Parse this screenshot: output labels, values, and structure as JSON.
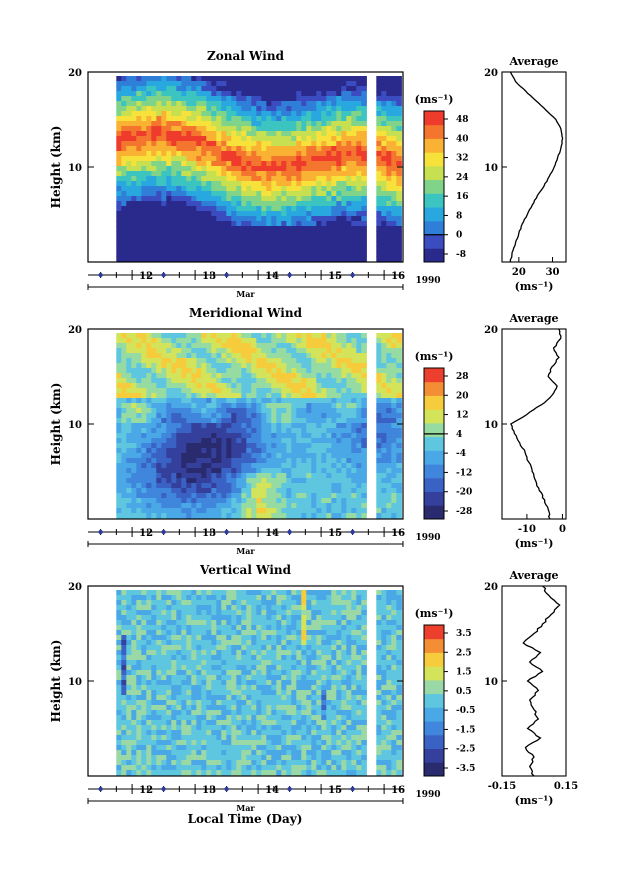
{
  "figure": {
    "bottom_label": "Local Time (Day)"
  },
  "colors": {
    "zonal": [
      "#2a2a8c",
      "#3b4cc0",
      "#2f7fd8",
      "#29a8e0",
      "#3cc4c0",
      "#7fd48a",
      "#c6e052",
      "#f7e13b",
      "#f9b233",
      "#f4762e",
      "#ef3b2c"
    ],
    "meridional": [
      "#2a2a6e",
      "#34409c",
      "#3a62c4",
      "#3f86dc",
      "#4aa8e6",
      "#5fc6e0",
      "#96dca2",
      "#d4e45a",
      "#f6cc3c",
      "#f38e35",
      "#ec3f2d"
    ],
    "vertical": [
      "#2a2a6e",
      "#34409c",
      "#3a62c4",
      "#3f86dc",
      "#4aa8e6",
      "#5fc6e0",
      "#9ad8a6",
      "#d4e45a",
      "#f6cc3c",
      "#f38e35",
      "#ec3f2d"
    ]
  },
  "chart_data": [
    {
      "type": "heatmap",
      "id": "zonal",
      "title": "Zonal Wind",
      "ylabel": "Height (km)",
      "ylim": [
        0,
        20
      ],
      "yticks": [
        "10",
        "20"
      ],
      "xlim": [
        11.3,
        16.3
      ],
      "xticks": [
        "12",
        "13",
        "14",
        "15",
        "16"
      ],
      "xlabel": "Mar",
      "year": "1990",
      "data_start": 11.75,
      "gap": [
        15.75,
        15.87
      ],
      "colorbar": {
        "unit": "(ms⁻¹)",
        "ticks": [
          "48",
          "40",
          "32",
          "24",
          "16",
          "8",
          "0",
          "-8"
        ],
        "zero_line": "0"
      },
      "profile": {
        "title": "Average",
        "xlim": [
          15,
          34
        ],
        "xticks": [
          "20",
          "30"
        ],
        "xlabel": "(ms⁻¹)",
        "height": [
          0,
          1,
          2,
          3,
          4,
          5,
          6,
          7,
          8,
          9,
          10,
          11,
          12,
          13,
          14,
          15,
          16,
          17,
          18,
          19,
          20
        ],
        "values": [
          17.5,
          18,
          19,
          20,
          21,
          22.5,
          24,
          25.5,
          27.5,
          29,
          30.5,
          31.5,
          32.5,
          33,
          32.5,
          31,
          28,
          25,
          22,
          19,
          17.5
        ]
      }
    },
    {
      "type": "heatmap",
      "id": "meridional",
      "title": "Meridional Wind",
      "ylabel": "Height (km)",
      "ylim": [
        0,
        20
      ],
      "yticks": [
        "10",
        "20"
      ],
      "xlim": [
        11.3,
        16.3
      ],
      "xticks": [
        "12",
        "13",
        "14",
        "15",
        "16"
      ],
      "xlabel": "Mar",
      "year": "1990",
      "data_start": 11.75,
      "gap": [
        15.75,
        15.87
      ],
      "colorbar": {
        "unit": "(ms⁻¹)",
        "ticks": [
          "28",
          "20",
          "12",
          "4",
          "-4",
          "-12",
          "-20",
          "-28"
        ],
        "zero_line": "4"
      },
      "profile": {
        "title": "Average",
        "xlim": [
          -17,
          1
        ],
        "xticks": [
          "-10",
          "0"
        ],
        "xlabel": "(ms⁻¹)",
        "height": [
          0,
          1,
          2,
          3,
          4,
          5,
          6,
          7,
          8,
          9,
          10,
          11,
          12,
          13,
          14,
          15,
          16,
          17,
          18,
          19,
          20
        ],
        "values": [
          -3.5,
          -4,
          -5,
          -6.5,
          -7.5,
          -8.5,
          -9.5,
          -10.5,
          -12,
          -13.5,
          -14.5,
          -10,
          -6,
          -3,
          -1.5,
          -4,
          -3,
          -1,
          -2.5,
          -0.5,
          -1
        ]
      }
    },
    {
      "type": "heatmap",
      "id": "vertical",
      "title": "Vertical Wind",
      "ylabel": "Height (km)",
      "ylim": [
        0,
        20
      ],
      "yticks": [
        "10",
        "20"
      ],
      "xlim": [
        11.3,
        16.3
      ],
      "xticks": [
        "12",
        "13",
        "14",
        "15",
        "16"
      ],
      "xlabel": "Mar",
      "year": "1990",
      "data_start": 11.75,
      "gap": [
        15.75,
        15.87
      ],
      "colorbar": {
        "unit": "(ms⁻¹)",
        "ticks": [
          "3.5",
          "2.5",
          "1.5",
          "0.5",
          "-0.5",
          "-1.5",
          "-2.5",
          "-3.5"
        ]
      },
      "profile": {
        "title": "Average",
        "xlim": [
          -0.15,
          0.15
        ],
        "xticks": [
          "-0.15",
          "0.15"
        ],
        "xlabel": "(ms⁻¹)",
        "height": [
          0,
          1,
          2,
          3,
          4,
          5,
          6,
          7,
          8,
          9,
          10,
          11,
          12,
          13,
          14,
          15,
          16,
          17,
          18,
          19,
          20
        ],
        "values": [
          0.0,
          -0.02,
          0.0,
          -0.04,
          0.03,
          -0.03,
          0.02,
          0.0,
          -0.02,
          0.02,
          -0.03,
          0.04,
          -0.02,
          0.03,
          -0.05,
          0.0,
          0.04,
          0.08,
          0.12,
          0.07,
          0.04
        ]
      }
    }
  ]
}
